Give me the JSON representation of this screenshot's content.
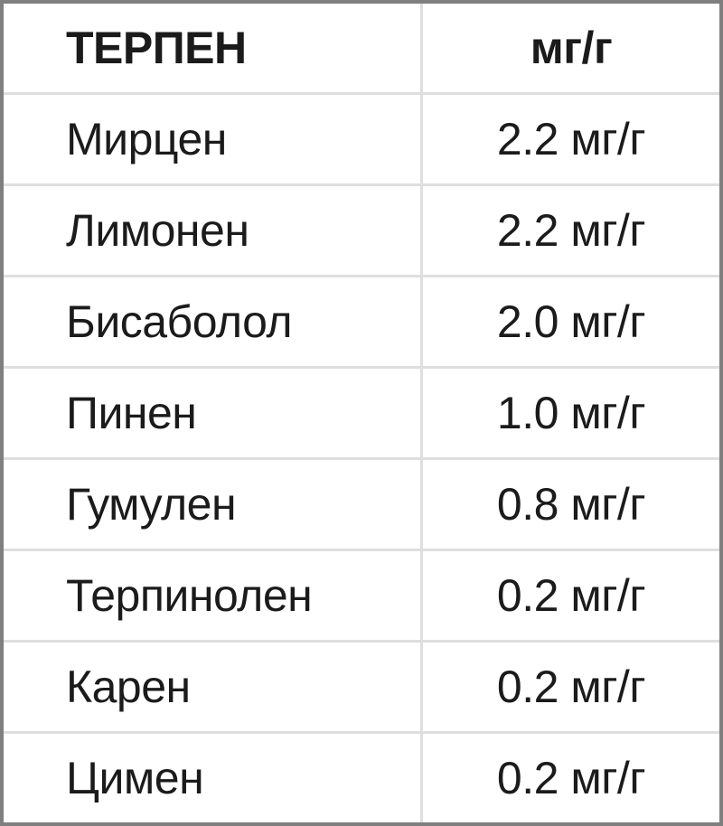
{
  "table": {
    "header": {
      "terpene": "ТЕРПЕН",
      "amount": "мг/г"
    },
    "rows": [
      {
        "terpene": "Мирцен",
        "amount": "2.2 мг/г"
      },
      {
        "terpene": "Лимонен",
        "amount": "2.2 мг/г"
      },
      {
        "terpene": "Бисаболол",
        "amount": "2.0 мг/г"
      },
      {
        "terpene": "Пинен",
        "amount": "1.0 мг/г"
      },
      {
        "terpene": "Гумулен",
        "amount": "0.8 мг/г"
      },
      {
        "terpene": "Терпинолен",
        "amount": "0.2 мг/г"
      },
      {
        "terpene": "Карен",
        "amount": "0.2 мг/г"
      },
      {
        "terpene": "Цимен",
        "amount": "0.2 мг/г"
      }
    ],
    "colors": {
      "outer_border": "#7f7f7f",
      "gridline": "#dedede",
      "text": "#1b1b1b",
      "background": "#ffffff"
    }
  },
  "chart_data": {
    "type": "table",
    "title": "",
    "columns": [
      "ТЕРПЕН",
      "мг/г"
    ],
    "rows": [
      [
        "Мирцен",
        "2.2 мг/г"
      ],
      [
        "Лимонен",
        "2.2 мг/г"
      ],
      [
        "Бисаболол",
        "2.0 мг/г"
      ],
      [
        "Пинен",
        "1.0 мг/г"
      ],
      [
        "Гумулен",
        "0.8 мг/г"
      ],
      [
        "Терпинолен",
        "0.2 мг/г"
      ],
      [
        "Карен",
        "0.2 мг/г"
      ],
      [
        "Цимен",
        "0.2 мг/г"
      ]
    ],
    "series": [
      {
        "name": "мг/г",
        "categories": [
          "Мирцен",
          "Лимонен",
          "Бисаболол",
          "Пинен",
          "Гумулен",
          "Терпинолен",
          "Карен",
          "Цимен"
        ],
        "values": [
          2.2,
          2.2,
          2.0,
          1.0,
          0.8,
          0.2,
          0.2,
          0.2
        ],
        "unit": "мг/г"
      }
    ]
  }
}
